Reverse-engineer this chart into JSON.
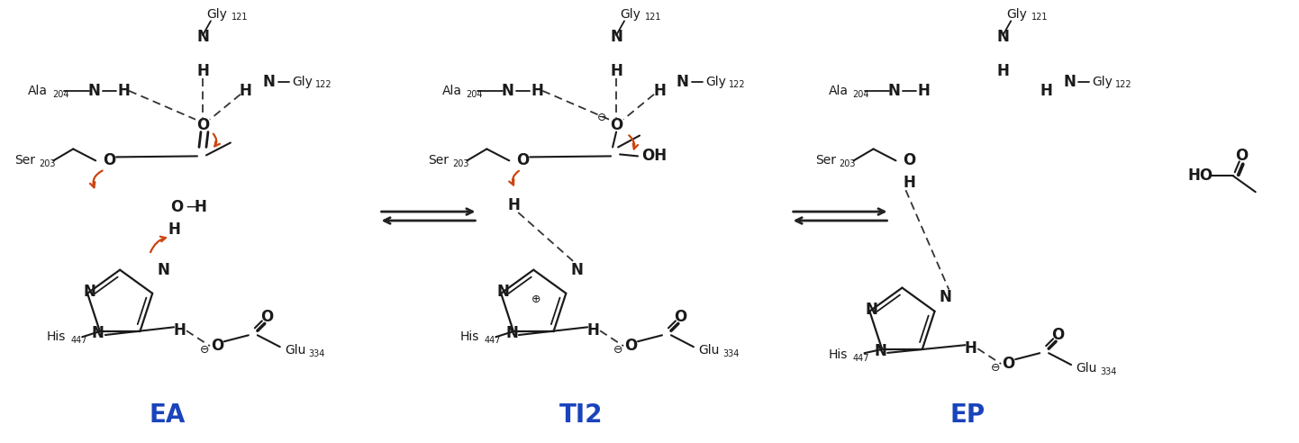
{
  "background_color": "#ffffff",
  "label_EA": "EA",
  "label_TI2": "TI2",
  "label_EP": "EP",
  "label_color": "#1a44bb",
  "text_color": "#1a1a1a",
  "arrow_color": "#cc4411",
  "figsize": [
    14.42,
    4.92
  ],
  "dpi": 100,
  "fs_main": 12,
  "fs_sub": 7,
  "fs_res": 10,
  "fs_label": 20
}
